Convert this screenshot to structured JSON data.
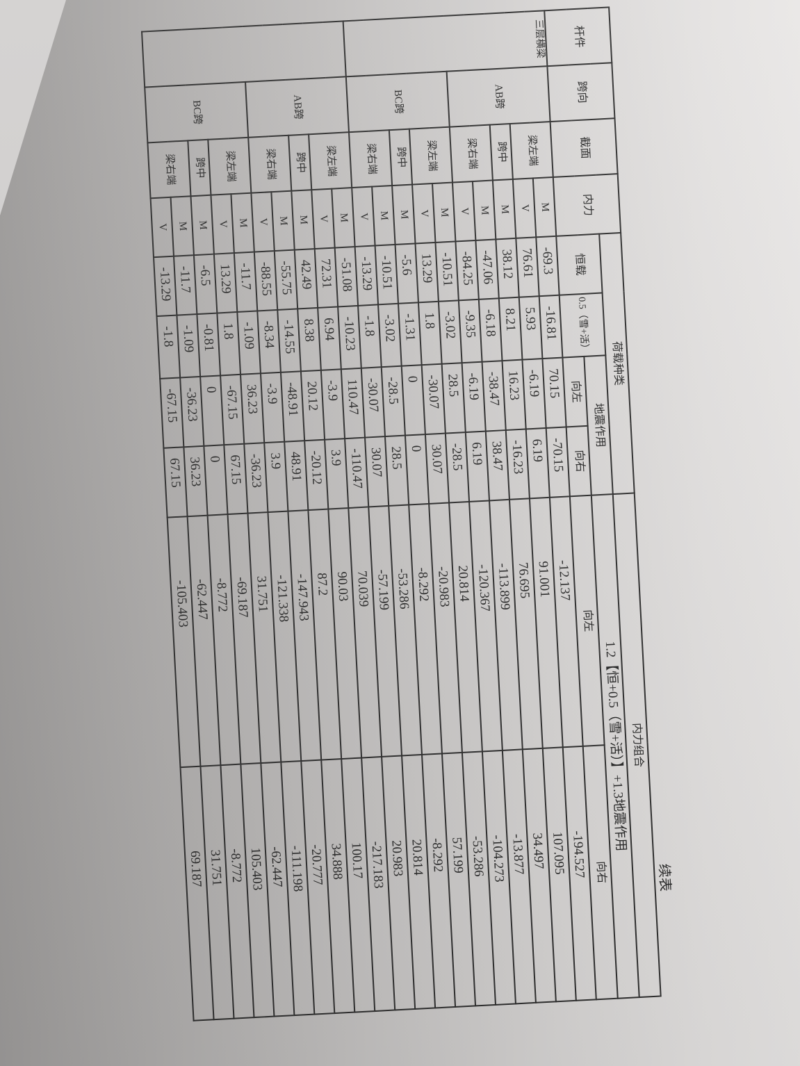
{
  "title": "续表",
  "header": {
    "member": "杆件",
    "span": "跨向",
    "section": "截面",
    "force": "内力",
    "load_types": "荷载种类",
    "dead": "恒载",
    "snow_live": "0.5（雪+活）",
    "seismic": "地震作用",
    "left": "向左",
    "right": "向右",
    "combination": "内力组合",
    "combo_formula": "1.2【恒+0.5（雪+活）】+1.3地震作用",
    "combo_left": "向左",
    "combo_right": "向右"
  },
  "blocks": [
    {
      "member": "三层横梁",
      "spans": [
        {
          "name": "AB跨",
          "sections": [
            {
              "name": "梁左端",
              "forces": [
                {
                  "type": "M",
                  "values": [
                    "-69.3",
                    "-16.81",
                    "70.15",
                    "-70.15",
                    "-12.137",
                    "-194.527"
                  ]
                },
                {
                  "type": "V",
                  "values": [
                    "76.61",
                    "5.93",
                    "-6.19",
                    "6.19",
                    "91.001",
                    "107.095"
                  ]
                }
              ]
            },
            {
              "name": "跨中",
              "forces": [
                {
                  "type": "M",
                  "values": [
                    "38.12",
                    "8.21",
                    "16.23",
                    "-16.23",
                    "76.695",
                    "34.497"
                  ]
                }
              ]
            },
            {
              "name": "梁右端",
              "forces": [
                {
                  "type": "M",
                  "values": [
                    "-47.06",
                    "-6.18",
                    "-38.47",
                    "38.47",
                    "-113.899",
                    "-13.877"
                  ]
                },
                {
                  "type": "V",
                  "values": [
                    "-84.25",
                    "-9.35",
                    "-6.19",
                    "6.19",
                    "-120.367",
                    "-104.273"
                  ]
                }
              ]
            }
          ]
        },
        {
          "name": "BC跨",
          "sections": [
            {
              "name": "梁左端",
              "forces": [
                {
                  "type": "M",
                  "values": [
                    "-10.51",
                    "-3.02",
                    "28.5",
                    "-28.5",
                    "20.814",
                    "-53.286"
                  ]
                },
                {
                  "type": "V",
                  "values": [
                    "13.29",
                    "1.8",
                    "-30.07",
                    "30.07",
                    "-20.983",
                    "57.199"
                  ]
                }
              ]
            },
            {
              "name": "跨中",
              "forces": [
                {
                  "type": "M",
                  "values": [
                    "-5.6",
                    "-1.31",
                    "0",
                    "0",
                    "-8.292",
                    "-8.292"
                  ]
                }
              ]
            },
            {
              "name": "梁右端",
              "forces": [
                {
                  "type": "M",
                  "values": [
                    "-10.51",
                    "-3.02",
                    "-28.5",
                    "28.5",
                    "-53.286",
                    "20.814"
                  ]
                },
                {
                  "type": "V",
                  "values": [
                    "-13.29",
                    "-1.8",
                    "-30.07",
                    "30.07",
                    "-57.199",
                    "20.983"
                  ]
                }
              ]
            }
          ]
        }
      ]
    },
    {
      "member": "",
      "spans": [
        {
          "name": "AB跨",
          "sections": [
            {
              "name": "梁左端",
              "forces": [
                {
                  "type": "M",
                  "values": [
                    "-51.08",
                    "-10.23",
                    "110.47",
                    "-110.47",
                    "70.039",
                    "-217.183"
                  ]
                },
                {
                  "type": "V",
                  "values": [
                    "72.31",
                    "6.94",
                    "-3.9",
                    "3.9",
                    "90.03",
                    "100.17"
                  ]
                }
              ]
            },
            {
              "name": "跨中",
              "forces": [
                {
                  "type": "M",
                  "values": [
                    "42.49",
                    "8.38",
                    "20.12",
                    "-20.12",
                    "87.2",
                    "34.888"
                  ]
                }
              ]
            },
            {
              "name": "梁右端",
              "forces": [
                {
                  "type": "M",
                  "values": [
                    "-55.75",
                    "-14.55",
                    "-48.91",
                    "48.91",
                    "-147.943",
                    "-20.777"
                  ]
                },
                {
                  "type": "V",
                  "values": [
                    "-88.55",
                    "-8.34",
                    "-3.9",
                    "3.9",
                    "-121.338",
                    "-111.198"
                  ]
                }
              ]
            }
          ]
        },
        {
          "name": "BC跨",
          "sections": [
            {
              "name": "梁左端",
              "forces": [
                {
                  "type": "M",
                  "values": [
                    "-11.7",
                    "-1.09",
                    "36.23",
                    "-36.23",
                    "31.751",
                    "-62.447"
                  ]
                },
                {
                  "type": "V",
                  "values": [
                    "13.29",
                    "1.8",
                    "-67.15",
                    "67.15",
                    "-69.187",
                    "105.403"
                  ]
                }
              ]
            },
            {
              "name": "跨中",
              "forces": [
                {
                  "type": "M",
                  "values": [
                    "-6.5",
                    "-0.81",
                    "0",
                    "0",
                    "-8.772",
                    "-8.772"
                  ]
                }
              ]
            },
            {
              "name": "梁右端",
              "forces": [
                {
                  "type": "M",
                  "values": [
                    "-11.7",
                    "-1.09",
                    "-36.23",
                    "36.23",
                    "-62.447",
                    "31.751"
                  ]
                },
                {
                  "type": "V",
                  "values": [
                    "-13.29",
                    "-1.8",
                    "-67.15",
                    "67.15",
                    "-105.403",
                    "69.187"
                  ]
                }
              ]
            }
          ]
        }
      ]
    }
  ]
}
